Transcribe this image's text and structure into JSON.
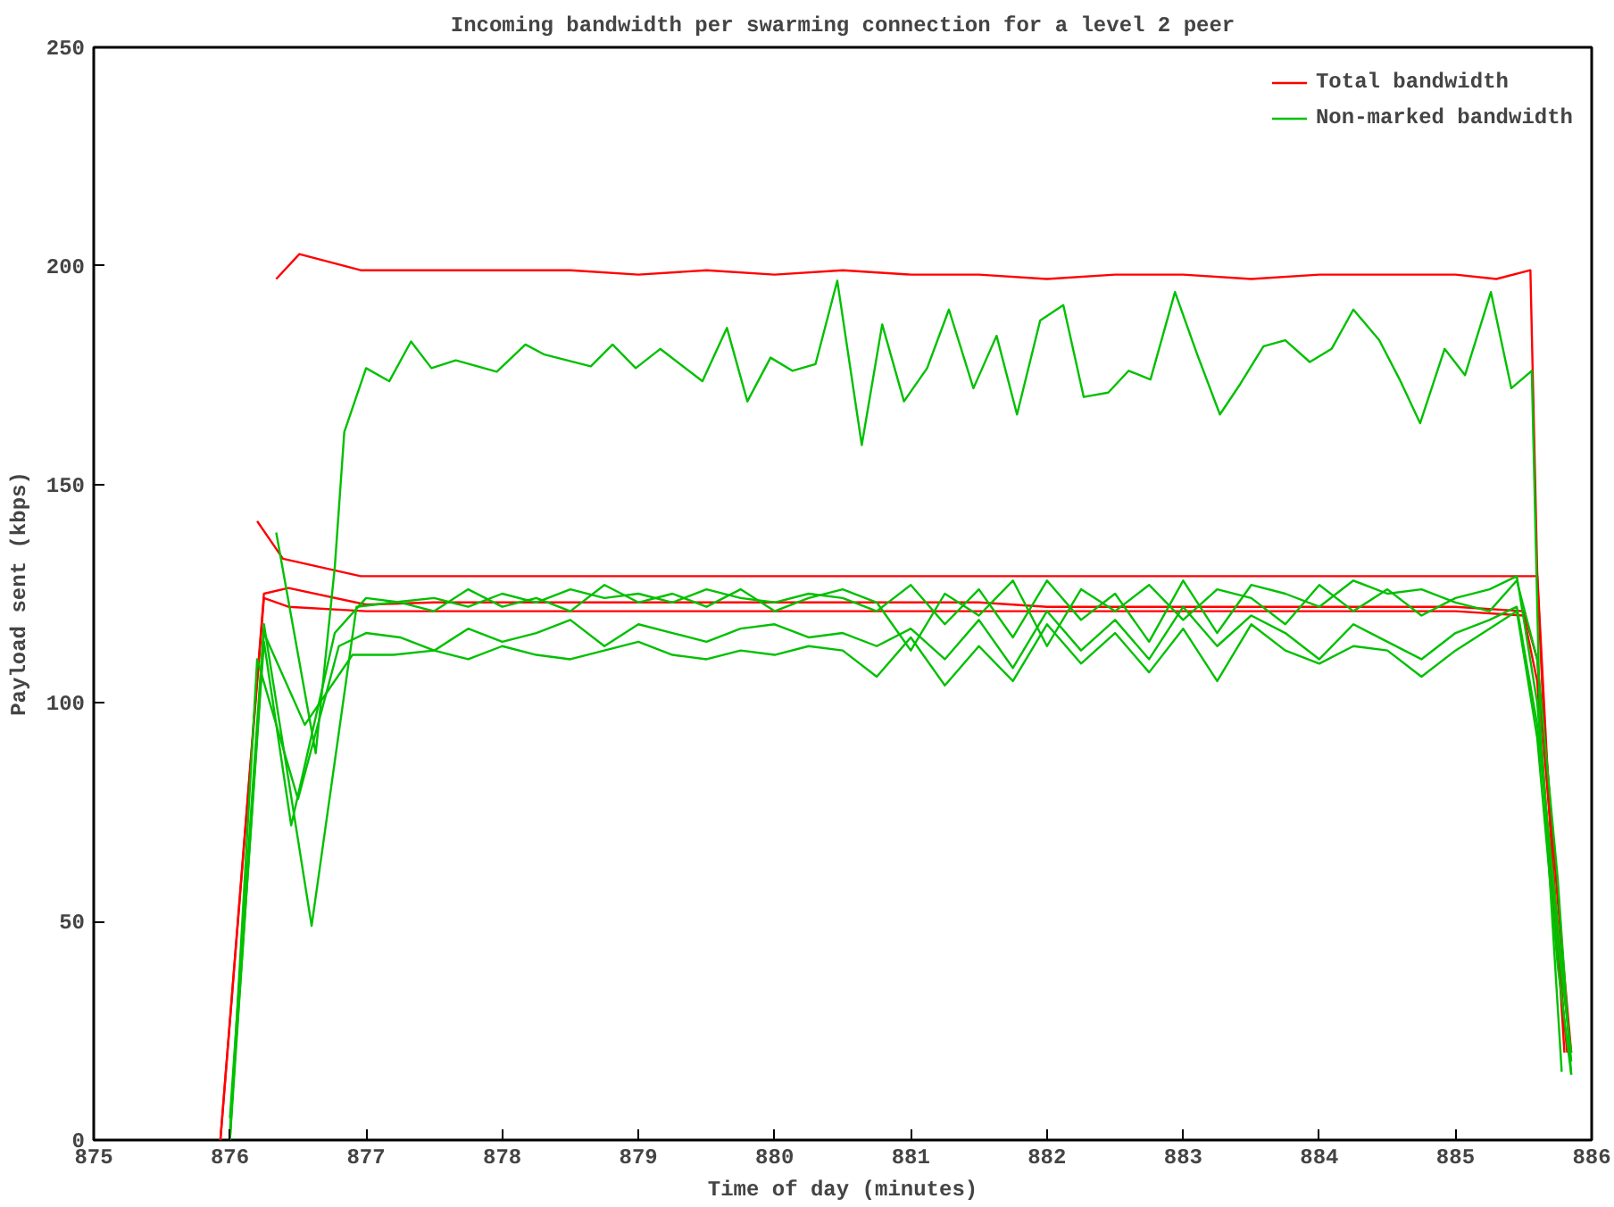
{
  "chart_data": {
    "type": "line",
    "title": "Incoming bandwidth per swarming connection for a level 2 peer",
    "xlabel": "Time of day (minutes)",
    "ylabel": "Payload sent (kbps)",
    "xlim": [
      875,
      886
    ],
    "xticks": [
      875,
      876,
      877,
      878,
      879,
      880,
      881,
      882,
      883,
      884,
      885,
      886
    ],
    "ylim": [
      0,
      250
    ],
    "yticks": [
      0,
      50,
      100,
      150,
      200,
      250
    ],
    "grid": false,
    "legend": "top right",
    "marker": "none",
    "line_style": "solid",
    "series": [
      {
        "name": "Total bandwidth",
        "color": "#ff0000",
        "x": [
          876.34,
          876.51,
          876.96,
          877.5,
          878.0,
          878.5,
          879.0,
          879.5,
          880.0,
          880.5,
          881.0,
          881.5,
          882.0,
          882.5,
          883.0,
          883.5,
          884.0,
          884.5,
          885.0,
          885.3,
          885.55,
          885.6,
          885.7,
          885.8
        ],
        "values": [
          197,
          202.7,
          199,
          199,
          199,
          199,
          198,
          199,
          198,
          199,
          198,
          198,
          197,
          198,
          198,
          197,
          198,
          198,
          198,
          197,
          199,
          130,
          70,
          20
        ]
      },
      {
        "color": "#ff0000",
        "x": [
          876.2,
          876.39,
          876.96,
          877.5,
          878.0,
          878.5,
          879.0,
          879.5,
          880.0,
          880.5,
          881.0,
          881.5,
          882.0,
          882.5,
          883.0,
          883.5,
          884.0,
          884.5,
          885.0,
          885.6,
          885.65,
          885.75,
          885.85
        ],
        "values": [
          141.6,
          133,
          129,
          129,
          129,
          129,
          129,
          129,
          129,
          129,
          129,
          129,
          129,
          129,
          129,
          129,
          129,
          129,
          129,
          129,
          95,
          55,
          20
        ]
      },
      {
        "color": "#ff0000",
        "x": [
          875.93,
          876.25,
          876.43,
          877.0,
          877.5,
          878.0,
          878.5,
          879.0,
          879.5,
          880.0,
          880.5,
          881.0,
          881.5,
          882.0,
          882.5,
          883.0,
          883.5,
          884.0,
          884.5,
          885.0,
          885.5,
          885.6,
          885.7,
          885.8
        ],
        "values": [
          0,
          125,
          126.3,
          122.5,
          123,
          123,
          123,
          123,
          123,
          123,
          123,
          123,
          123,
          122,
          122,
          122,
          122,
          122,
          122,
          122,
          121,
          110,
          70,
          25
        ]
      },
      {
        "color": "#ff0000",
        "x": [
          875.93,
          876.25,
          876.43,
          877.0,
          877.5,
          878.0,
          878.5,
          879.0,
          879.5,
          880.0,
          880.5,
          881.0,
          881.5,
          882.0,
          882.5,
          883.0,
          883.5,
          884.0,
          884.5,
          885.0,
          885.5,
          885.6,
          885.7,
          885.82
        ],
        "values": [
          0,
          124,
          122,
          121,
          121,
          121,
          121,
          121,
          121,
          121,
          121,
          121,
          121,
          121,
          121,
          121,
          121,
          121,
          121,
          121,
          120,
          105,
          60,
          20
        ]
      },
      {
        "name": "Non-marked bandwidth",
        "color": "#00c000",
        "x": [
          876.34,
          876.63,
          876.77,
          876.84,
          877.0,
          877.17,
          877.33,
          877.48,
          877.66,
          877.96,
          878.17,
          878.31,
          878.65,
          878.81,
          878.98,
          879.16,
          879.47,
          879.65,
          879.8,
          879.97,
          880.13,
          880.3,
          880.46,
          880.64,
          880.79,
          880.95,
          881.12,
          881.28,
          881.46,
          881.63,
          881.78,
          881.95,
          882.12,
          882.27,
          882.45,
          882.6,
          882.76,
          882.94,
          883.1,
          883.27,
          883.42,
          883.59,
          883.75,
          883.93,
          884.09,
          884.25,
          884.44,
          884.59,
          884.74,
          884.92,
          885.07,
          885.26,
          885.41,
          885.56,
          885.62,
          885.78
        ],
        "values": [
          139,
          88.5,
          131,
          162,
          176.6,
          173.6,
          182.7,
          176.6,
          178.4,
          175.8,
          182,
          179.7,
          177,
          182,
          176.6,
          181,
          173.6,
          185.8,
          169,
          179,
          176,
          177.5,
          196.6,
          159,
          186.6,
          169,
          176.6,
          190,
          172,
          184,
          166,
          187.5,
          191,
          170,
          171,
          176,
          174,
          194,
          180,
          166,
          173,
          181.6,
          183,
          178,
          181,
          190,
          183,
          174,
          164,
          181,
          175,
          194,
          172,
          176,
          96,
          15.6
        ]
      },
      {
        "color": "#00c000",
        "x": [
          876.0,
          876.25,
          876.6,
          876.93,
          877.2,
          877.5,
          877.75,
          878.0,
          878.25,
          878.5,
          878.75,
          879.0,
          879.25,
          879.5,
          879.75,
          880.0,
          880.25,
          880.5,
          880.75,
          881.0,
          881.25,
          881.5,
          881.75,
          882.0,
          882.25,
          882.5,
          882.75,
          883.0,
          883.25,
          883.5,
          883.75,
          884.0,
          884.25,
          884.5,
          884.75,
          885.0,
          885.25,
          885.45,
          885.6,
          885.75,
          885.85
        ],
        "values": [
          5,
          118,
          49,
          122,
          123,
          124,
          122,
          125,
          123,
          126,
          124,
          125,
          123,
          126,
          124,
          123,
          125,
          124,
          121,
          127,
          118,
          126,
          115,
          128,
          119,
          125,
          114,
          128,
          116,
          127,
          125,
          122,
          128,
          125,
          126,
          123,
          121,
          128,
          110,
          60,
          15
        ]
      },
      {
        "color": "#00c000",
        "x": [
          876.0,
          876.25,
          876.45,
          876.77,
          877.0,
          877.25,
          877.5,
          877.75,
          878.0,
          878.25,
          878.5,
          878.75,
          879.0,
          879.25,
          879.5,
          879.75,
          880.0,
          880.25,
          880.5,
          880.75,
          881.0,
          881.25,
          881.5,
          881.75,
          882.0,
          882.25,
          882.5,
          882.75,
          883.0,
          883.25,
          883.5,
          883.75,
          884.0,
          884.25,
          884.5,
          884.75,
          885.0,
          885.25,
          885.45,
          885.6,
          885.75,
          885.85
        ],
        "values": [
          2,
          114,
          72,
          116,
          124,
          123,
          121,
          126,
          122,
          124,
          121,
          127,
          123,
          125,
          122,
          126,
          121,
          124,
          126,
          123,
          112,
          125,
          120,
          128,
          113,
          126,
          121,
          127,
          119,
          126,
          124,
          118,
          127,
          121,
          126,
          120,
          124,
          126,
          129,
          100,
          45,
          20
        ]
      },
      {
        "color": "#00c000",
        "x": [
          876.0,
          876.2,
          876.5,
          876.8,
          877.0,
          877.25,
          877.5,
          877.75,
          878.0,
          878.25,
          878.5,
          878.75,
          879.0,
          879.25,
          879.5,
          879.75,
          880.0,
          880.25,
          880.5,
          880.75,
          881.0,
          881.25,
          881.5,
          881.75,
          882.0,
          882.25,
          882.5,
          882.75,
          883.0,
          883.25,
          883.5,
          883.75,
          884.0,
          884.25,
          884.5,
          884.75,
          885.0,
          885.25,
          885.45,
          885.6,
          885.75,
          885.85
        ],
        "values": [
          0,
          110,
          78,
          113,
          116,
          115,
          112,
          117,
          114,
          116,
          119,
          113,
          118,
          116,
          114,
          117,
          118,
          115,
          116,
          113,
          117,
          110,
          119,
          108,
          121,
          112,
          119,
          110,
          122,
          113,
          120,
          116,
          110,
          118,
          114,
          110,
          116,
          119,
          122,
          95,
          50,
          18
        ]
      },
      {
        "color": "#00c000",
        "x": [
          876.0,
          876.25,
          876.55,
          876.9,
          877.2,
          877.5,
          877.75,
          878.0,
          878.25,
          878.5,
          878.75,
          879.0,
          879.25,
          879.5,
          879.75,
          880.0,
          880.25,
          880.5,
          880.75,
          881.0,
          881.25,
          881.5,
          881.75,
          882.0,
          882.25,
          882.5,
          882.75,
          883.0,
          883.25,
          883.5,
          883.75,
          884.0,
          884.25,
          884.5,
          884.75,
          885.0,
          885.25,
          885.45,
          885.6,
          885.75,
          885.85
        ],
        "values": [
          0,
          116,
          95,
          111,
          111,
          112,
          110,
          113,
          111,
          110,
          112,
          114,
          111,
          110,
          112,
          111,
          113,
          112,
          106,
          115,
          104,
          113,
          105,
          118,
          109,
          116,
          107,
          117,
          105,
          118,
          112,
          109,
          113,
          112,
          106,
          112,
          117,
          121,
          92,
          40,
          15
        ]
      }
    ]
  }
}
